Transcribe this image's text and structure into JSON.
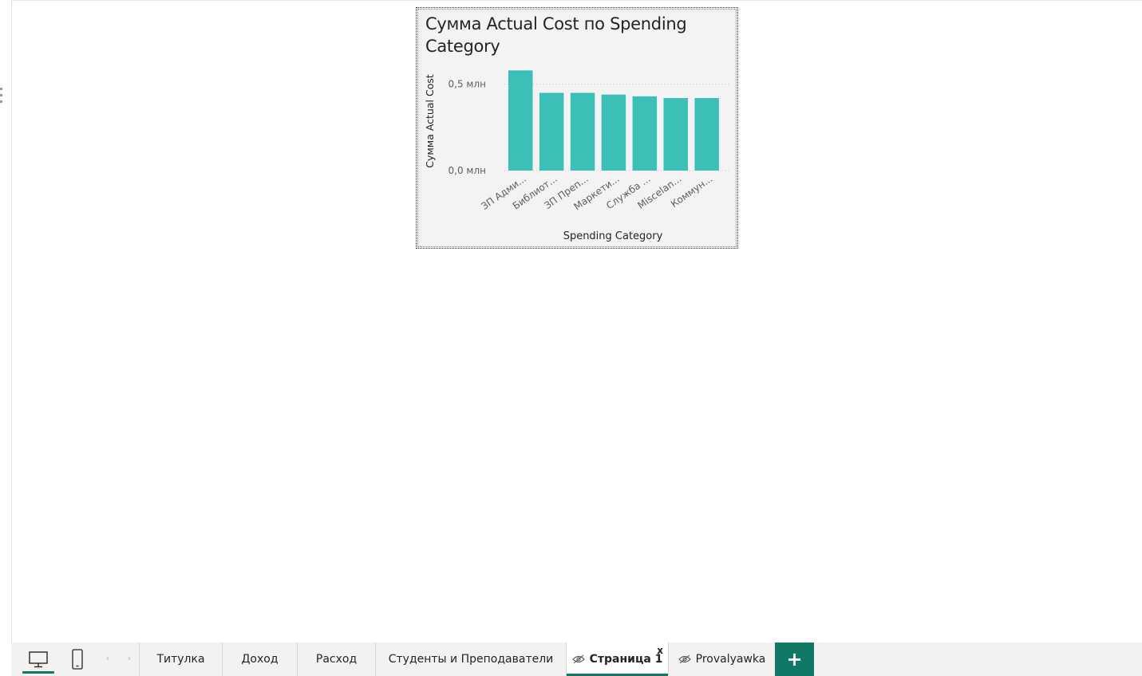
{
  "visual": {
    "title": "Сумма Actual Cost по Spending Category"
  },
  "chart_data": {
    "type": "bar",
    "title": "Сумма Actual Cost по Spending Category",
    "xlabel": "Spending Category",
    "ylabel": "Сумма Actual Cost",
    "categories": [
      "ЗП Адми...",
      "Библиот...",
      "ЗП Преп...",
      "Маркети...",
      "Служба ...",
      "Miscelan...",
      "Коммун..."
    ],
    "values": [
      0.58,
      0.45,
      0.45,
      0.44,
      0.43,
      0.42,
      0.42
    ],
    "yticks": [
      0,
      0.5
    ],
    "ytick_labels": [
      "0,0 млн",
      "0,5 млн"
    ],
    "ylim": [
      0,
      0.6
    ],
    "grid": true,
    "bar_color": "#3cbfb6"
  },
  "tabbar": {
    "views": [
      {
        "name": "desktop-view",
        "icon": "desktop-icon",
        "active": true
      },
      {
        "name": "mobile-view",
        "icon": "mobile-icon",
        "active": false
      }
    ],
    "prev_arrow": "‹",
    "next_arrow": "›",
    "tabs": [
      {
        "label": "Титулка",
        "hidden": false,
        "active": false
      },
      {
        "label": "Доход",
        "hidden": false,
        "active": false
      },
      {
        "label": "Расход",
        "hidden": false,
        "active": false
      },
      {
        "label": "Студенты и Преподаватели",
        "hidden": false,
        "active": false
      },
      {
        "label": "Страница 1",
        "hidden": true,
        "active": true,
        "close": "x"
      },
      {
        "label": "Provalyawka",
        "hidden": true,
        "active": false
      }
    ],
    "add_label": "+",
    "accent_color": "#117865"
  }
}
